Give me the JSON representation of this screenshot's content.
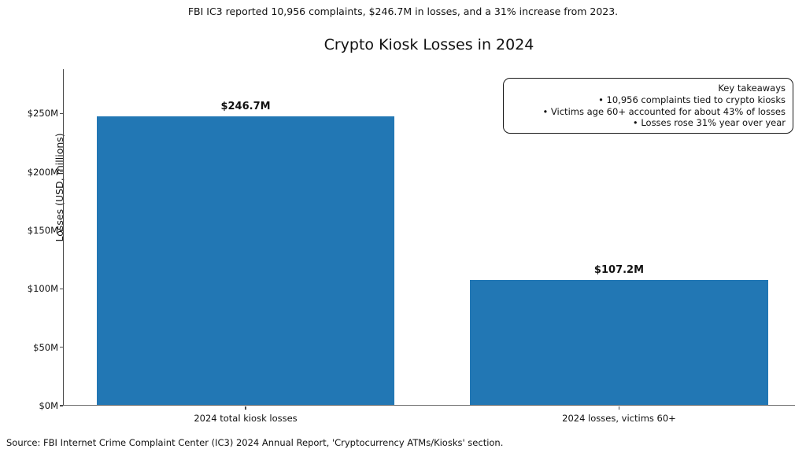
{
  "suptitle": "FBI IC3 reported 10,956 complaints, $246.7M in losses, and a 31% increase from 2023.",
  "source_note": "Source: FBI Internet Crime Complaint Center (IC3) 2024 Annual Report, 'Cryptocurrency ATMs/Kiosks' section.",
  "annotation_box": {
    "title": "Key takeaways",
    "bullets": [
      "• 10,956 complaints tied to crypto kiosks",
      "• Victims age 60+ accounted for about 43% of losses",
      "• Losses rose 31% year over year"
    ]
  },
  "chart_data": {
    "type": "bar",
    "title": "Crypto Kiosk Losses in 2024",
    "categories": [
      "2024 total kiosk losses",
      "2024 losses, victims 60+"
    ],
    "values": [
      246.7,
      107.2
    ],
    "value_labels": [
      "$246.7M",
      "$107.2M"
    ],
    "xlabel": "",
    "ylabel": "Losses (USD, millions)",
    "ylim": [
      0,
      288
    ],
    "yticks": [
      0,
      50,
      100,
      150,
      200,
      250
    ],
    "ytick_labels": [
      "$0M",
      "$50M",
      "$100M",
      "$150M",
      "$200M",
      "$250M"
    ],
    "bar_color": "#2277b4",
    "grid": false,
    "legend": null
  }
}
